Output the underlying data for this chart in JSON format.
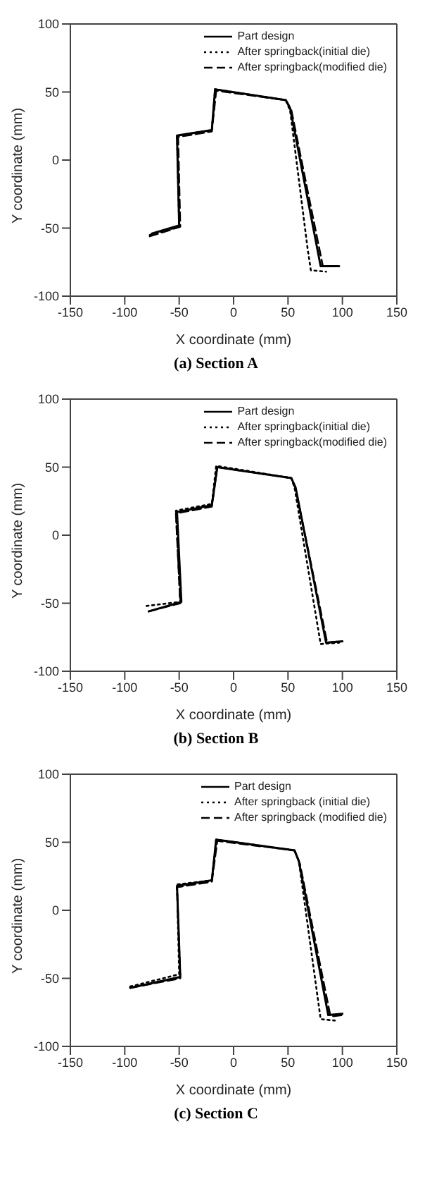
{
  "chart_data": [
    {
      "type": "line",
      "title": "(a) Section A",
      "xlabel": "X coordinate (mm)",
      "ylabel": "Y coordinate (mm)",
      "xlim": [
        -150,
        150
      ],
      "xticks": [
        -150,
        -100,
        -50,
        0,
        50,
        100,
        150
      ],
      "ylim": [
        -100,
        100
      ],
      "yticks": [
        -100,
        -50,
        0,
        50,
        100
      ],
      "legend": "top right",
      "marker": "none",
      "series": [
        {
          "name": "Part design",
          "color": "#000000",
          "line_style": "solid",
          "x": [
            -75,
            -50,
            -52,
            -20,
            -17,
            48,
            52,
            80,
            97
          ],
          "values": [
            -54,
            -48,
            18,
            22,
            52,
            44,
            38,
            -78,
            -78
          ]
        },
        {
          "name": "After springback(initial die)",
          "color": "#000000",
          "line_style": "dotted",
          "x": [
            -77,
            -50,
            -52,
            -20,
            -17,
            48,
            52,
            68,
            71,
            85
          ],
          "values": [
            -55,
            -49,
            18,
            22,
            52,
            44,
            36,
            -65,
            -81,
            -82
          ]
        },
        {
          "name": "After springback(modified die)",
          "color": "#000000",
          "line_style": "dashed",
          "x": [
            -77,
            -49,
            -51,
            -20,
            -16,
            48,
            53,
            82,
            95
          ],
          "values": [
            -56,
            -49,
            17,
            21,
            51,
            44,
            37,
            -78,
            -78
          ]
        }
      ]
    },
    {
      "type": "line",
      "title": "(b) Section B",
      "xlabel": "X coordinate (mm)",
      "ylabel": "Y coordinate (mm)",
      "xlim": [
        -150,
        150
      ],
      "xticks": [
        -150,
        -100,
        -50,
        0,
        50,
        100,
        150
      ],
      "ylim": [
        -100,
        100
      ],
      "yticks": [
        -100,
        -50,
        0,
        50,
        100
      ],
      "legend": "top right",
      "marker": "none",
      "series": [
        {
          "name": "Part design",
          "color": "#000000",
          "line_style": "solid",
          "x": [
            -78,
            -48,
            -52,
            -20,
            -15,
            53,
            57,
            85,
            100
          ],
          "values": [
            -56,
            -49,
            17,
            22,
            50,
            42,
            35,
            -79,
            -78
          ]
        },
        {
          "name": "After springback(initial die)",
          "color": "#000000",
          "line_style": "dotted",
          "x": [
            -80,
            -49,
            -53,
            -20,
            -16,
            53,
            56,
            80,
            97
          ],
          "values": [
            -52,
            -49,
            18,
            23,
            51,
            42,
            35,
            -80,
            -79
          ]
        },
        {
          "name": "After springback(modified die)",
          "color": "#000000",
          "line_style": "dashed",
          "x": [
            -78,
            -49,
            -53,
            -20,
            -15,
            53,
            57,
            86,
            98
          ],
          "values": [
            -56,
            -50,
            16,
            21,
            50,
            42,
            34,
            -79,
            -78
          ]
        }
      ]
    },
    {
      "type": "line",
      "title": "(c) Section C",
      "xlabel": "X coordinate (mm)",
      "ylabel": "Y coordinate (mm)",
      "xlim": [
        -150,
        150
      ],
      "xticks": [
        -150,
        -100,
        -50,
        0,
        50,
        100,
        150
      ],
      "ylim": [
        -100,
        100
      ],
      "yticks": [
        -100,
        -50,
        0,
        50,
        100
      ],
      "legend": "top right",
      "marker": "none",
      "series": [
        {
          "name": "Part design",
          "color": "#000000",
          "line_style": "solid",
          "x": [
            -95,
            -49,
            -52,
            -20,
            -16,
            56,
            60,
            87,
            100
          ],
          "values": [
            -57,
            -49,
            18,
            22,
            52,
            44,
            36,
            -77,
            -76
          ]
        },
        {
          "name": "After springback (initial die)",
          "color": "#000000",
          "line_style": "dotted",
          "x": [
            -95,
            -50,
            -52,
            -20,
            -16,
            56,
            60,
            80,
            93
          ],
          "values": [
            -56,
            -47,
            19,
            22,
            52,
            44,
            36,
            -80,
            -81
          ]
        },
        {
          "name": "After springback (modified die)",
          "color": "#000000",
          "line_style": "dashed",
          "x": [
            -95,
            -49,
            -52,
            -20,
            -15,
            56,
            61,
            89,
            100
          ],
          "values": [
            -57,
            -50,
            17,
            21,
            51,
            44,
            34,
            -78,
            -77
          ]
        }
      ]
    }
  ]
}
